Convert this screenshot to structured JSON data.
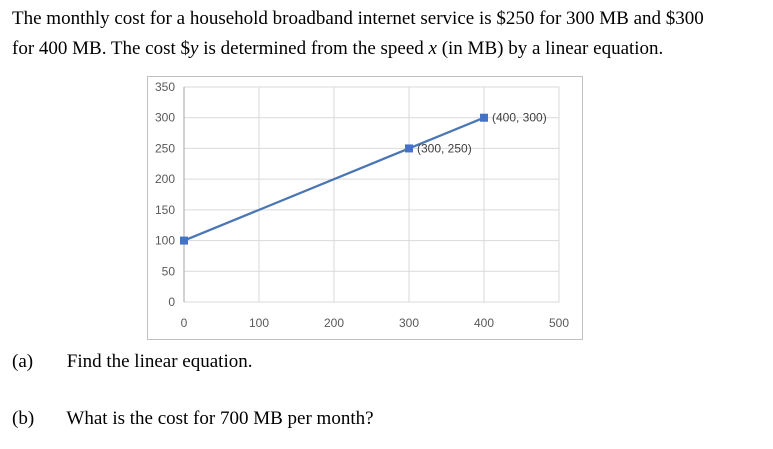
{
  "problem": {
    "intro_line1": "The monthly cost for a household broadband internet service is $250 for 300 MB and $300",
    "intro_line2_prefix": "for 400 MB. The cost $",
    "intro_y": "y",
    "intro_line2_mid": " is determined from the speed ",
    "intro_x": "x",
    "intro_line2_suffix": " (in MB) by a linear equation."
  },
  "questions": [
    {
      "label": "(a)",
      "text": "Find the linear equation."
    },
    {
      "label": "(b)",
      "text": "What is the cost for 700 MB per month?"
    }
  ],
  "chart_data": {
    "type": "line",
    "x": [
      0,
      300,
      400
    ],
    "y": [
      100,
      250,
      300
    ],
    "marked_points": [
      {
        "x": 0,
        "y": 100,
        "label": ""
      },
      {
        "x": 300,
        "y": 250,
        "label": "(300, 250)"
      },
      {
        "x": 400,
        "y": 300,
        "label": "(400, 300)"
      }
    ],
    "xlim": [
      0,
      500
    ],
    "ylim": [
      0,
      350
    ],
    "x_ticks": [
      0,
      100,
      200,
      300,
      400,
      500
    ],
    "y_ticks": [
      0,
      50,
      100,
      150,
      200,
      250,
      300,
      350
    ],
    "grid": true,
    "legend": "none",
    "title": "",
    "xlabel": "",
    "ylabel": "",
    "colors": {
      "line": "#4a76b4",
      "marker": "#4472c4",
      "grid": "#d9d9d9",
      "border": "#bfbfbf"
    }
  }
}
